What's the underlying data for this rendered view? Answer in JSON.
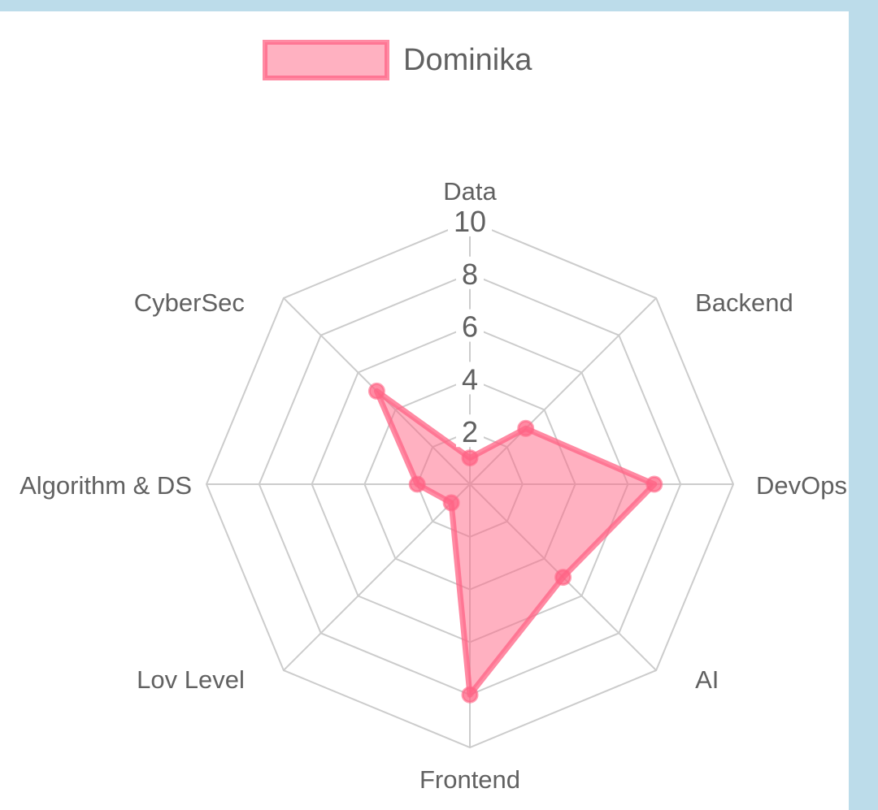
{
  "chart_data": {
    "type": "radar",
    "labels": [
      "Data",
      "Backend",
      "DevOps",
      "AI",
      "Frontend",
      "Lov Level",
      "Algorithm & DS",
      "CyberSec"
    ],
    "series": [
      {
        "name": "Dominika",
        "values": [
          1,
          3,
          7,
          5,
          8,
          1,
          2,
          5
        ],
        "color": "#ff6384",
        "fill": "rgba(255,99,132,0.5)"
      }
    ],
    "r_range": [
      0,
      10
    ],
    "ticks": [
      "2",
      "4",
      "6",
      "8",
      "10"
    ],
    "legend_position": "top"
  },
  "colors": {
    "background": "#bcdcea",
    "card": "#ffffff",
    "grid": "#cccccc",
    "text": "#616161"
  }
}
